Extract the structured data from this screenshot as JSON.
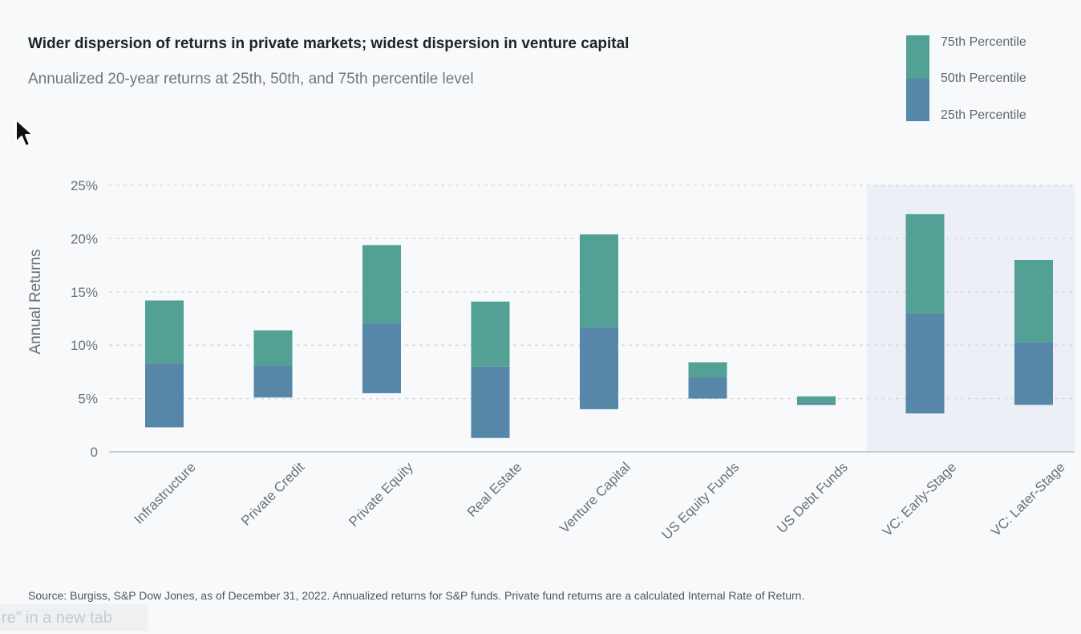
{
  "chart_data": {
    "type": "bar",
    "subtype": "floating-stacked-range",
    "title": "Wider dispersion of returns in private markets; widest dispersion in venture capital",
    "subtitle": "Annualized 20-year returns at 25th, 50th, and 75th percentile level",
    "ylabel": "Annual Returns",
    "xlabel": "",
    "ylim": [
      0,
      25
    ],
    "yticks": [
      0,
      5,
      10,
      15,
      20,
      25
    ],
    "ytick_labels": [
      "0",
      "5%",
      "10%",
      "15%",
      "20%",
      "25%"
    ],
    "grid": true,
    "legend_position": "top-right",
    "legend": [
      "75th Percentile",
      "50th Percentile",
      "25th Percentile"
    ],
    "highlight_categories": [
      "VC: Early-Stage",
      "VC: Later-Stage"
    ],
    "categories": [
      "Infrastructure",
      "Private Credit",
      "Private Equity",
      "Real Estate",
      "Venture Capital",
      "US Equity Funds",
      "US Debt Funds",
      "VC: Early-Stage",
      "VC: Later-Stage"
    ],
    "series": [
      {
        "name": "25th Percentile",
        "values": [
          2.3,
          5.1,
          5.5,
          1.3,
          4.0,
          5.0,
          4.4,
          3.6,
          4.4
        ]
      },
      {
        "name": "50th Percentile",
        "values": [
          8.3,
          8.1,
          12.1,
          8.0,
          11.7,
          7.0,
          4.6,
          13.0,
          10.3
        ]
      },
      {
        "name": "75th Percentile",
        "values": [
          14.2,
          11.4,
          19.4,
          14.1,
          20.4,
          8.4,
          5.2,
          22.3,
          18.0
        ]
      }
    ],
    "colors": {
      "upper": "#53a095",
      "lower": "#5686a8",
      "highlight_band": "#eceff5",
      "grid": "#d4d8dc",
      "axis": "#c9cdd1"
    }
  },
  "footnote": "Source: Burgiss, S&P Dow Jones, as of December 31, 2022. Annualized returns for S&P funds. Private fund returns are a calculated Internal Rate of Return.",
  "tab_hint": "re” in a new tab"
}
